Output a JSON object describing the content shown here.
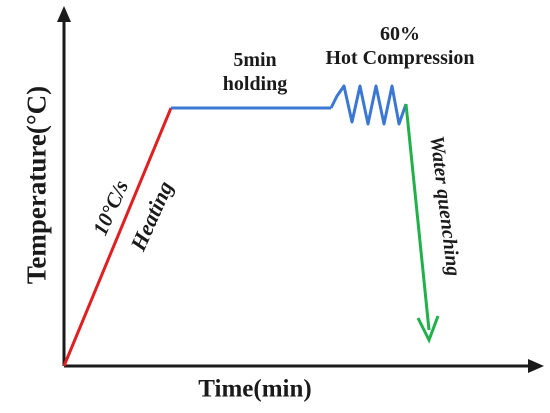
{
  "diagram": {
    "y_axis_label": "Temperature(°C)",
    "x_axis_label": "Time(min)",
    "holding": {
      "line1": "5min",
      "line2": "holding"
    },
    "compression": {
      "line1": "60%",
      "line2": "Hot Compression"
    },
    "heating_rate": "10°C/s",
    "heating": "Heating",
    "quenching": "Water quenching"
  },
  "colors": {
    "axis": "#1a1a1a",
    "heating": "#e02020",
    "holding": "#3a78d4",
    "compression": "#3a78d4",
    "quenching": "#22b04a"
  }
}
